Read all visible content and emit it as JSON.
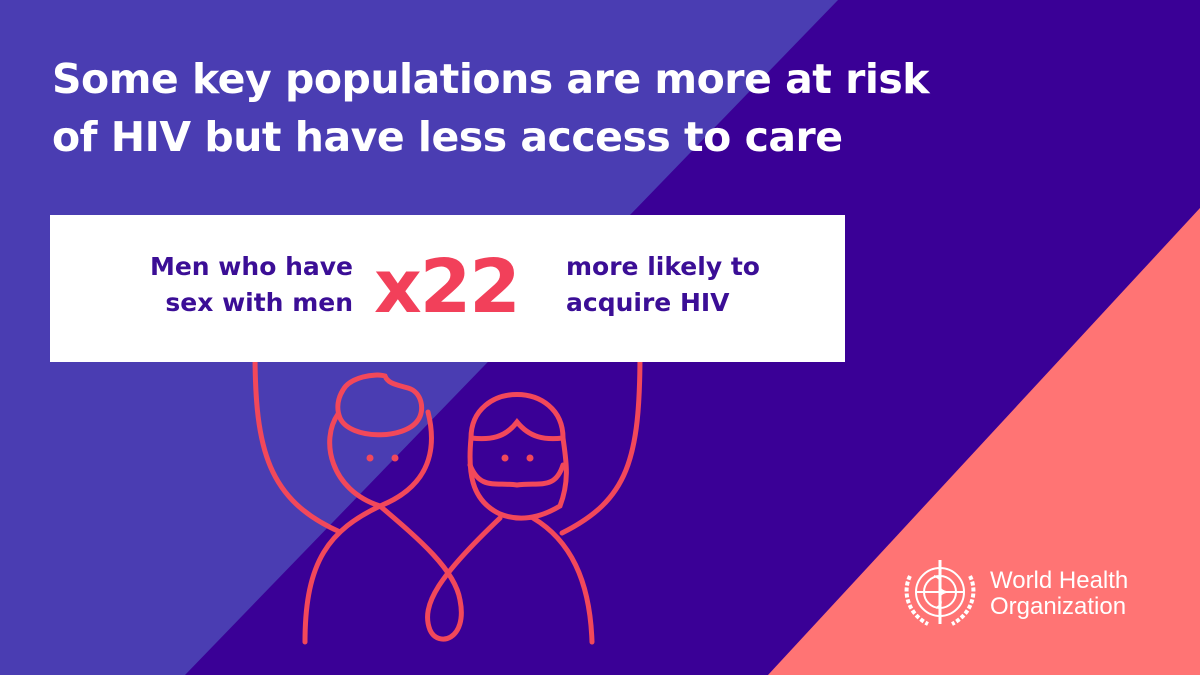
{
  "title": {
    "line1": "Some key populations are more at risk",
    "line2": "of HIV but have less access to care"
  },
  "card": {
    "population": {
      "line1": "Men who have",
      "line2": "sex with men"
    },
    "multiplier": "x22",
    "outcome": {
      "line1": "more likely to",
      "line2": "acquire HIV"
    }
  },
  "logo": {
    "line1": "World Health",
    "line2": "Organization"
  },
  "colors": {
    "light_blue": "#4a3db2",
    "dark_purple": "#3a0096",
    "coral": "#ff7474",
    "accent": "#f2405a",
    "text_purple": "#3b0e96"
  },
  "icons": [
    "two-people-holding-sign-illustration",
    "who-emblem"
  ]
}
